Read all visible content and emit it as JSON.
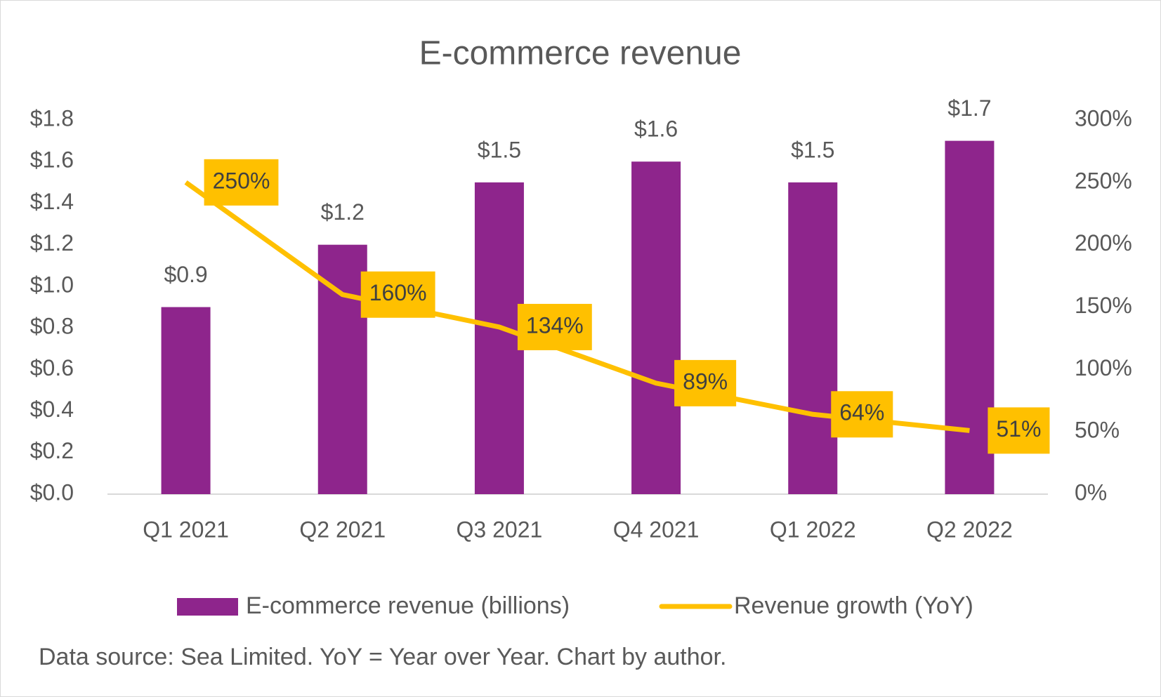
{
  "chart_data": {
    "type": "bar+line",
    "title": "E-commerce revenue",
    "categories": [
      "Q1 2021",
      "Q2 2021",
      "Q3 2021",
      "Q4 2021",
      "Q1 2022",
      "Q2 2022"
    ],
    "series": [
      {
        "name": "E-commerce revenue (billions)",
        "type": "bar",
        "color": "#8e258c",
        "values": [
          0.9,
          1.2,
          1.5,
          1.6,
          1.5,
          1.7
        ],
        "value_labels": [
          "$0.9",
          "$1.2",
          "$1.5",
          "$1.6",
          "$1.5",
          "$1.7"
        ]
      },
      {
        "name": "Revenue growth (YoY)",
        "type": "line",
        "axis": "y2",
        "color": "#ffc000",
        "values": [
          250,
          160,
          134,
          89,
          64,
          51
        ],
        "value_labels": [
          "250%",
          "160%",
          "134%",
          "89%",
          "64%",
          "51%"
        ]
      }
    ],
    "ylim": [
      0,
      1.8
    ],
    "yticks": [
      {
        "value": 0,
        "label": "$0.0"
      },
      {
        "value": 0.2,
        "label": "$0.2"
      },
      {
        "value": 0.4,
        "label": "$0.4"
      },
      {
        "value": 0.6,
        "label": "$0.6"
      },
      {
        "value": 0.8,
        "label": "$0.8"
      },
      {
        "value": 1.0,
        "label": "$1.0"
      },
      {
        "value": 1.2,
        "label": "$1.2"
      },
      {
        "value": 1.4,
        "label": "$1.4"
      },
      {
        "value": 1.6,
        "label": "$1.6"
      },
      {
        "value": 1.8,
        "label": "$1.8"
      }
    ],
    "y2lim": [
      0,
      300
    ],
    "y2ticks": [
      {
        "value": 0,
        "label": "0%"
      },
      {
        "value": 50,
        "label": "50%"
      },
      {
        "value": 100,
        "label": "100%"
      },
      {
        "value": 150,
        "label": "150%"
      },
      {
        "value": 200,
        "label": "200%"
      },
      {
        "value": 250,
        "label": "250%"
      },
      {
        "value": 300,
        "label": "300%"
      }
    ],
    "grid": false,
    "legend": "bottom",
    "note": "Data source: Sea Limited. YoY = Year over Year. Chart by author."
  }
}
